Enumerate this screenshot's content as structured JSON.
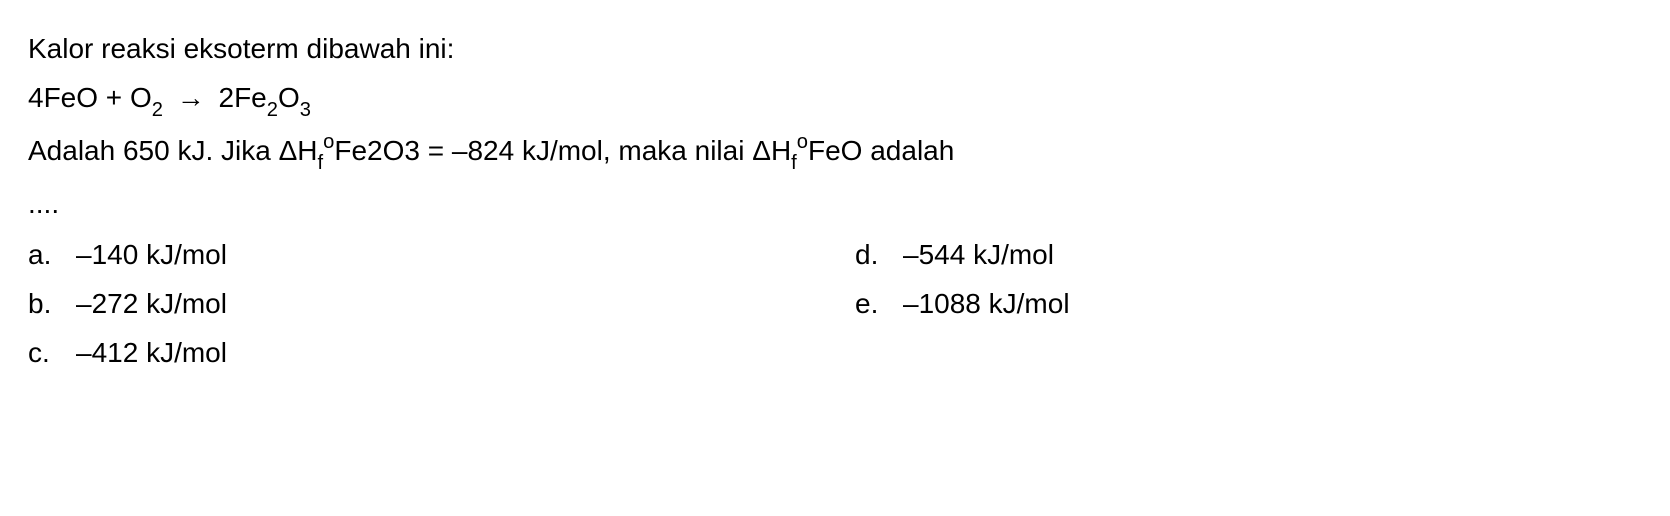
{
  "question": {
    "intro": "Kalor reaksi eksoterm dibawah ini:",
    "equation": {
      "lhs_coef1": "4FeO + O",
      "lhs_sub1": "2",
      "arrow": "→",
      "rhs_coef": " 2Fe",
      "rhs_sub1": "2",
      "rhs_o": "O",
      "rhs_sub2": "3"
    },
    "line2_a": "Adalah 650 kJ.  Jika ",
    "delta": "Δ",
    "Hf_H": "H",
    "Hf_sub": "f",
    "Hf_sup": "o",
    "line2_species1": "Fe2O3 = –824 kJ/mol, maka nilai ",
    "line2_species2": "FeO adalah",
    "dots": "....",
    "options": {
      "a": {
        "letter": "a.",
        "text": "–140 kJ/mol"
      },
      "b": {
        "letter": "b.",
        "text": "–272 kJ/mol"
      },
      "c": {
        "letter": "c.",
        "text": "–412 kJ/mol"
      },
      "d": {
        "letter": "d.",
        "text": "–544 kJ/mol"
      },
      "e": {
        "letter": "e.",
        "text": "–1088 kJ/mol"
      }
    }
  }
}
